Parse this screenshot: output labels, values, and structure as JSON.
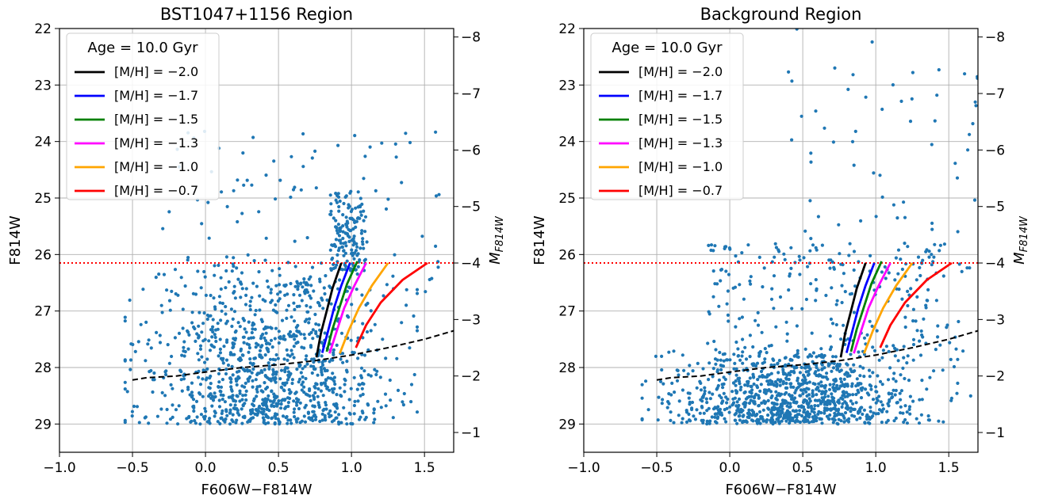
{
  "chart_data": [
    {
      "type": "scatter",
      "title": "BST1047+1156 Region",
      "xlabel": "F606W−F814W",
      "ylabel": "F814W",
      "y2label_base": "M",
      "y2label_sub": "F814W",
      "xlim": [
        -1.0,
        1.7
      ],
      "ylim": [
        29.5,
        22.0
      ],
      "x_ticks": [
        -1.0,
        -0.5,
        0.0,
        0.5,
        1.0,
        1.5
      ],
      "x_tick_labels": [
        "−1.0",
        "−0.5",
        "0.0",
        "0.5",
        "1.0",
        "1.5"
      ],
      "y_ticks": [
        22,
        23,
        24,
        25,
        26,
        27,
        28,
        29
      ],
      "y_tick_labels": [
        "22",
        "23",
        "24",
        "25",
        "26",
        "27",
        "28",
        "29"
      ],
      "y2_ticks": [
        -8,
        -7,
        -6,
        -5,
        -4,
        -3,
        -2,
        -1
      ],
      "y2_tick_labels": [
        "−8",
        "−7",
        "−6",
        "−5",
        "−4",
        "−3",
        "−2",
        "−1"
      ],
      "distance_modulus": 30.15,
      "grid": true,
      "legend_position": "upper-left",
      "legend_title": "Age = 10.0 Gyr",
      "trgb_line": 26.15,
      "completeness_curve": {
        "x": [
          -0.5,
          -0.4,
          -0.2,
          0.0,
          0.25,
          0.5,
          0.75,
          1.0,
          1.25,
          1.5,
          1.7
        ],
        "y": [
          28.22,
          28.18,
          28.15,
          28.08,
          28.0,
          27.95,
          27.88,
          27.78,
          27.65,
          27.5,
          27.35
        ]
      },
      "isochrones": [
        {
          "name": "[M/H] = −2.0",
          "color": "#000000",
          "x": [
            0.76,
            0.79,
            0.83,
            0.87,
            0.93
          ],
          "y": [
            27.82,
            27.4,
            27.0,
            26.6,
            26.15
          ]
        },
        {
          "name": "[M/H] = −1.7",
          "color": "#0000ff",
          "x": [
            0.8,
            0.84,
            0.88,
            0.93,
            0.99
          ],
          "y": [
            27.74,
            27.35,
            26.95,
            26.55,
            26.15
          ]
        },
        {
          "name": "[M/H] = −1.5",
          "color": "#008000",
          "x": [
            0.83,
            0.87,
            0.92,
            0.97,
            1.04
          ],
          "y": [
            27.72,
            27.32,
            26.92,
            26.52,
            26.12
          ]
        },
        {
          "name": "[M/H] = −1.3",
          "color": "#ff00ff",
          "x": [
            0.85,
            0.9,
            0.95,
            1.02,
            1.1
          ],
          "y": [
            27.75,
            27.35,
            26.95,
            26.55,
            26.15
          ]
        },
        {
          "name": "[M/H] = −1.0",
          "color": "#ffa500",
          "x": [
            0.92,
            0.98,
            1.05,
            1.14,
            1.25
          ],
          "y": [
            27.75,
            27.35,
            26.95,
            26.55,
            26.15
          ]
        },
        {
          "name": "[M/H] = −0.7",
          "color": "#ff0000",
          "x": [
            1.03,
            1.1,
            1.2,
            1.35,
            1.52
          ],
          "y": [
            27.65,
            27.25,
            26.85,
            26.45,
            26.15
          ]
        }
      ],
      "points": {
        "seed": 11,
        "bulk": {
          "n": 1100,
          "x_range": [
            -0.55,
            1.45
          ],
          "y_range": [
            26.0,
            29.0
          ]
        },
        "upper": {
          "n": 160,
          "x_range": [
            0.85,
            1.1
          ],
          "y_range": [
            24.8,
            26.3
          ]
        },
        "sparse": {
          "n": 90,
          "x_range": [
            -0.3,
            1.6
          ],
          "y_range": [
            23.7,
            26.8
          ]
        }
      }
    },
    {
      "type": "scatter",
      "title": "Background Region",
      "xlabel": "F606W−F814W",
      "ylabel": "F814W",
      "y2label_base": "M",
      "y2label_sub": "F814W",
      "xlim": [
        -1.0,
        1.7
      ],
      "ylim": [
        29.5,
        22.0
      ],
      "x_ticks": [
        -1.0,
        -0.5,
        0.0,
        0.5,
        1.0,
        1.5
      ],
      "x_tick_labels": [
        "−1.0",
        "−0.5",
        "0.0",
        "0.5",
        "1.0",
        "1.5"
      ],
      "y_ticks": [
        22,
        23,
        24,
        25,
        26,
        27,
        28,
        29
      ],
      "y_tick_labels": [
        "22",
        "23",
        "24",
        "25",
        "26",
        "27",
        "28",
        "29"
      ],
      "y2_ticks": [
        -8,
        -7,
        -6,
        -5,
        -4,
        -3,
        -2,
        -1
      ],
      "y2_tick_labels": [
        "−8",
        "−7",
        "−6",
        "−5",
        "−4",
        "−3",
        "−2",
        "−1"
      ],
      "distance_modulus": 30.15,
      "grid": true,
      "legend_position": "upper-left",
      "legend_title": "Age = 10.0 Gyr",
      "trgb_line": 26.15,
      "completeness_curve": {
        "x": [
          -0.5,
          -0.4,
          -0.2,
          0.0,
          0.25,
          0.5,
          0.75,
          1.0,
          1.25,
          1.5,
          1.7
        ],
        "y": [
          28.22,
          28.18,
          28.15,
          28.08,
          28.0,
          27.95,
          27.88,
          27.78,
          27.65,
          27.5,
          27.35
        ]
      },
      "isochrones": [
        {
          "name": "[M/H] = −2.0",
          "color": "#000000",
          "x": [
            0.76,
            0.79,
            0.83,
            0.87,
            0.93
          ],
          "y": [
            27.82,
            27.4,
            27.0,
            26.6,
            26.15
          ]
        },
        {
          "name": "[M/H] = −1.7",
          "color": "#0000ff",
          "x": [
            0.8,
            0.84,
            0.88,
            0.93,
            0.99
          ],
          "y": [
            27.74,
            27.35,
            26.95,
            26.55,
            26.15
          ]
        },
        {
          "name": "[M/H] = −1.5",
          "color": "#008000",
          "x": [
            0.83,
            0.87,
            0.92,
            0.97,
            1.04
          ],
          "y": [
            27.72,
            27.32,
            26.92,
            26.52,
            26.12
          ]
        },
        {
          "name": "[M/H] = −1.3",
          "color": "#ff00ff",
          "x": [
            0.85,
            0.9,
            0.95,
            1.02,
            1.1
          ],
          "y": [
            27.75,
            27.35,
            26.95,
            26.55,
            26.15
          ]
        },
        {
          "name": "[M/H] = −1.0",
          "color": "#ffa500",
          "x": [
            0.92,
            0.98,
            1.05,
            1.14,
            1.25
          ],
          "y": [
            27.75,
            27.35,
            26.95,
            26.55,
            26.15
          ]
        },
        {
          "name": "[M/H] = −0.7",
          "color": "#ff0000",
          "x": [
            1.03,
            1.1,
            1.2,
            1.35,
            1.52
          ],
          "y": [
            27.65,
            27.25,
            26.85,
            26.45,
            26.15
          ]
        }
      ],
      "points": {
        "seed": 29,
        "bulk": {
          "n": 1000,
          "x_range": [
            -0.6,
            1.65
          ],
          "y_range": [
            27.6,
            29.0
          ]
        },
        "upper": {
          "n": 70,
          "x_range": [
            0.4,
            1.7
          ],
          "y_range": [
            22.0,
            26.5
          ]
        },
        "sparse": {
          "n": 260,
          "x_range": [
            -0.2,
            1.6
          ],
          "y_range": [
            25.8,
            28.0
          ]
        }
      }
    }
  ]
}
